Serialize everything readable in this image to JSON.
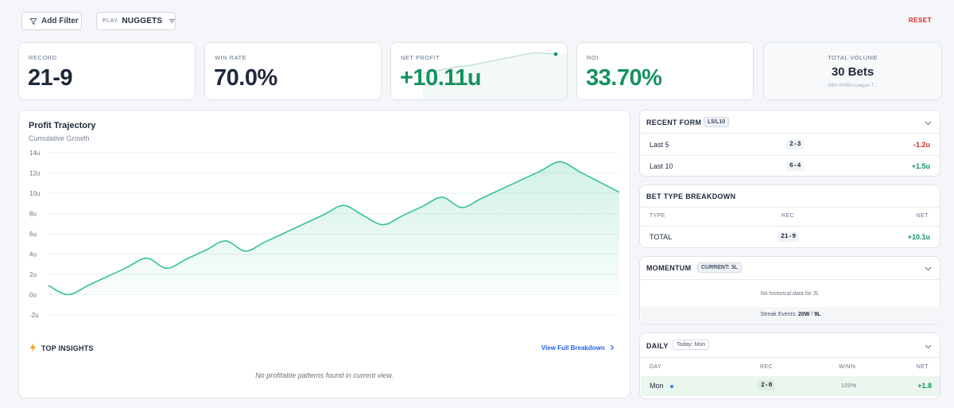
{
  "filters": {
    "add_filter_label": "Add Filter",
    "play_key": "PLAY",
    "play_value": "NUGGETS",
    "reset_label": "RESET"
  },
  "stats": {
    "record": {
      "label": "RECORD",
      "value": "21-9"
    },
    "win_rate": {
      "label": "WIN RATE",
      "value": "70.0%"
    },
    "net_profit": {
      "label": "NET PROFIT",
      "value": "+10.11u"
    },
    "roi": {
      "label": "ROI",
      "value": "33.70%"
    },
    "volume": {
      "label": "TOTAL VOLUME",
      "value": "30 Bets",
      "sub": "NBA WNBA League T..."
    }
  },
  "colors": {
    "accent_green": "#15925f",
    "negative_red": "#dc2626",
    "link_blue": "#2563eb",
    "line_green": "#34c48b"
  },
  "chart_data": {
    "type": "area",
    "title": "Profit Trajectory",
    "subtitle": "Cumulative Growth",
    "y_unit": "u",
    "ylim": [
      -2,
      14
    ],
    "yticks": [
      "14u",
      "12u",
      "10u",
      "8u",
      "6u",
      "4u",
      "2u",
      "0u",
      "-2u"
    ],
    "grid": true,
    "series": [
      {
        "values": [
          0.9,
          0.0,
          0.9,
          1.8,
          2.7,
          3.6,
          2.6,
          3.5,
          4.4,
          5.3,
          4.3,
          5.2,
          6.1,
          7.0,
          7.9,
          8.8,
          7.8,
          6.9,
          7.8,
          8.7,
          9.6,
          8.6,
          9.5,
          10.4,
          11.3,
          12.2,
          13.1,
          12.1,
          11.1,
          10.1
        ]
      }
    ]
  },
  "insights": {
    "title": "TOP INSIGHTS",
    "link": "View Full Breakdown",
    "empty": "No profitable patterns found in current view."
  },
  "recent_form": {
    "title": "RECENT FORM",
    "badge": "L5/L10",
    "rows": [
      {
        "label": "Last 5",
        "record": "2-3",
        "net": "-1.2u"
      },
      {
        "label": "Last 10",
        "record": "6-4",
        "net": "+1.5u"
      }
    ]
  },
  "bet_type": {
    "title": "BET TYPE BREAKDOWN",
    "headers": [
      "TYPE",
      "REC",
      "NET"
    ],
    "rows": [
      {
        "type": "TOTAL",
        "rec": "21-9",
        "net": "+10.1u"
      }
    ]
  },
  "momentum": {
    "title": "MOMENTUM",
    "badge": "CURRENT: 3L",
    "empty": "No historical data for 3L",
    "streak_label": "Streak Events:",
    "streak_w": "20W",
    "streak_sep": "/",
    "streak_l": "9L"
  },
  "daily": {
    "title": "DAILY",
    "badge": "Today: Mon",
    "headers": [
      "DAY",
      "REC",
      "WIN%",
      "NET"
    ],
    "rows": [
      {
        "day": "Mon",
        "rec": "2-0",
        "win": "100%",
        "net": "+1.8"
      }
    ]
  }
}
